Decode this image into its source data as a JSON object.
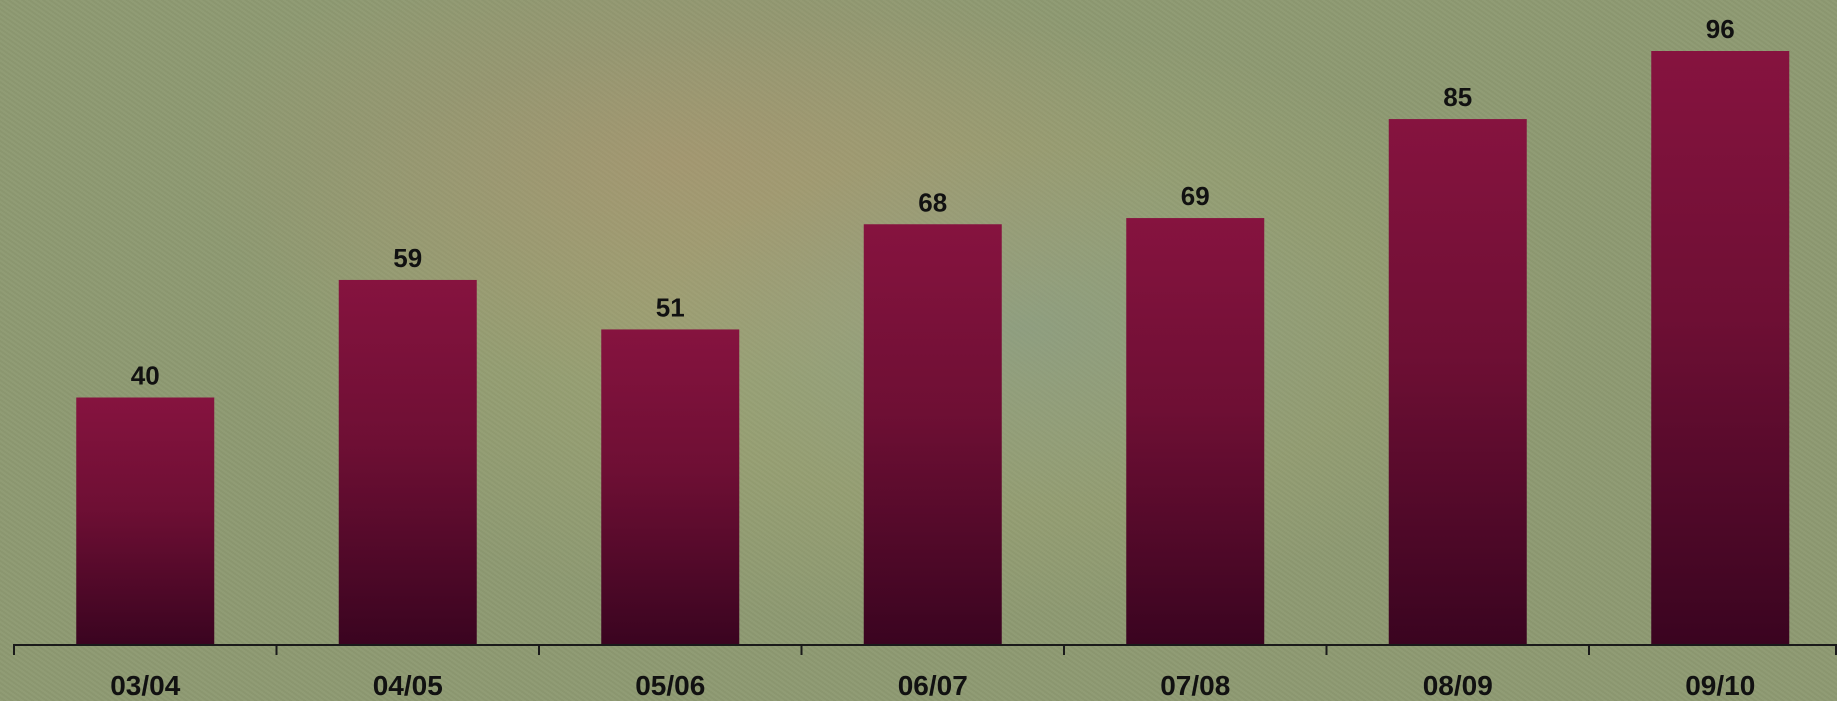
{
  "chart_data": {
    "type": "bar",
    "categories": [
      "03/04",
      "04/05",
      "05/06",
      "06/07",
      "07/08",
      "08/09",
      "09/10"
    ],
    "values": [
      40,
      59,
      51,
      68,
      69,
      85,
      96
    ],
    "title": "",
    "xlabel": "",
    "ylabel": "",
    "ylim": [
      0,
      100
    ],
    "grid": false,
    "legend": "none",
    "data_labels": true,
    "colors": {
      "bar_top": "#86133f",
      "bar_bottom": "#3a0420",
      "text": "#111111",
      "axis": "#1a1a1a"
    }
  }
}
